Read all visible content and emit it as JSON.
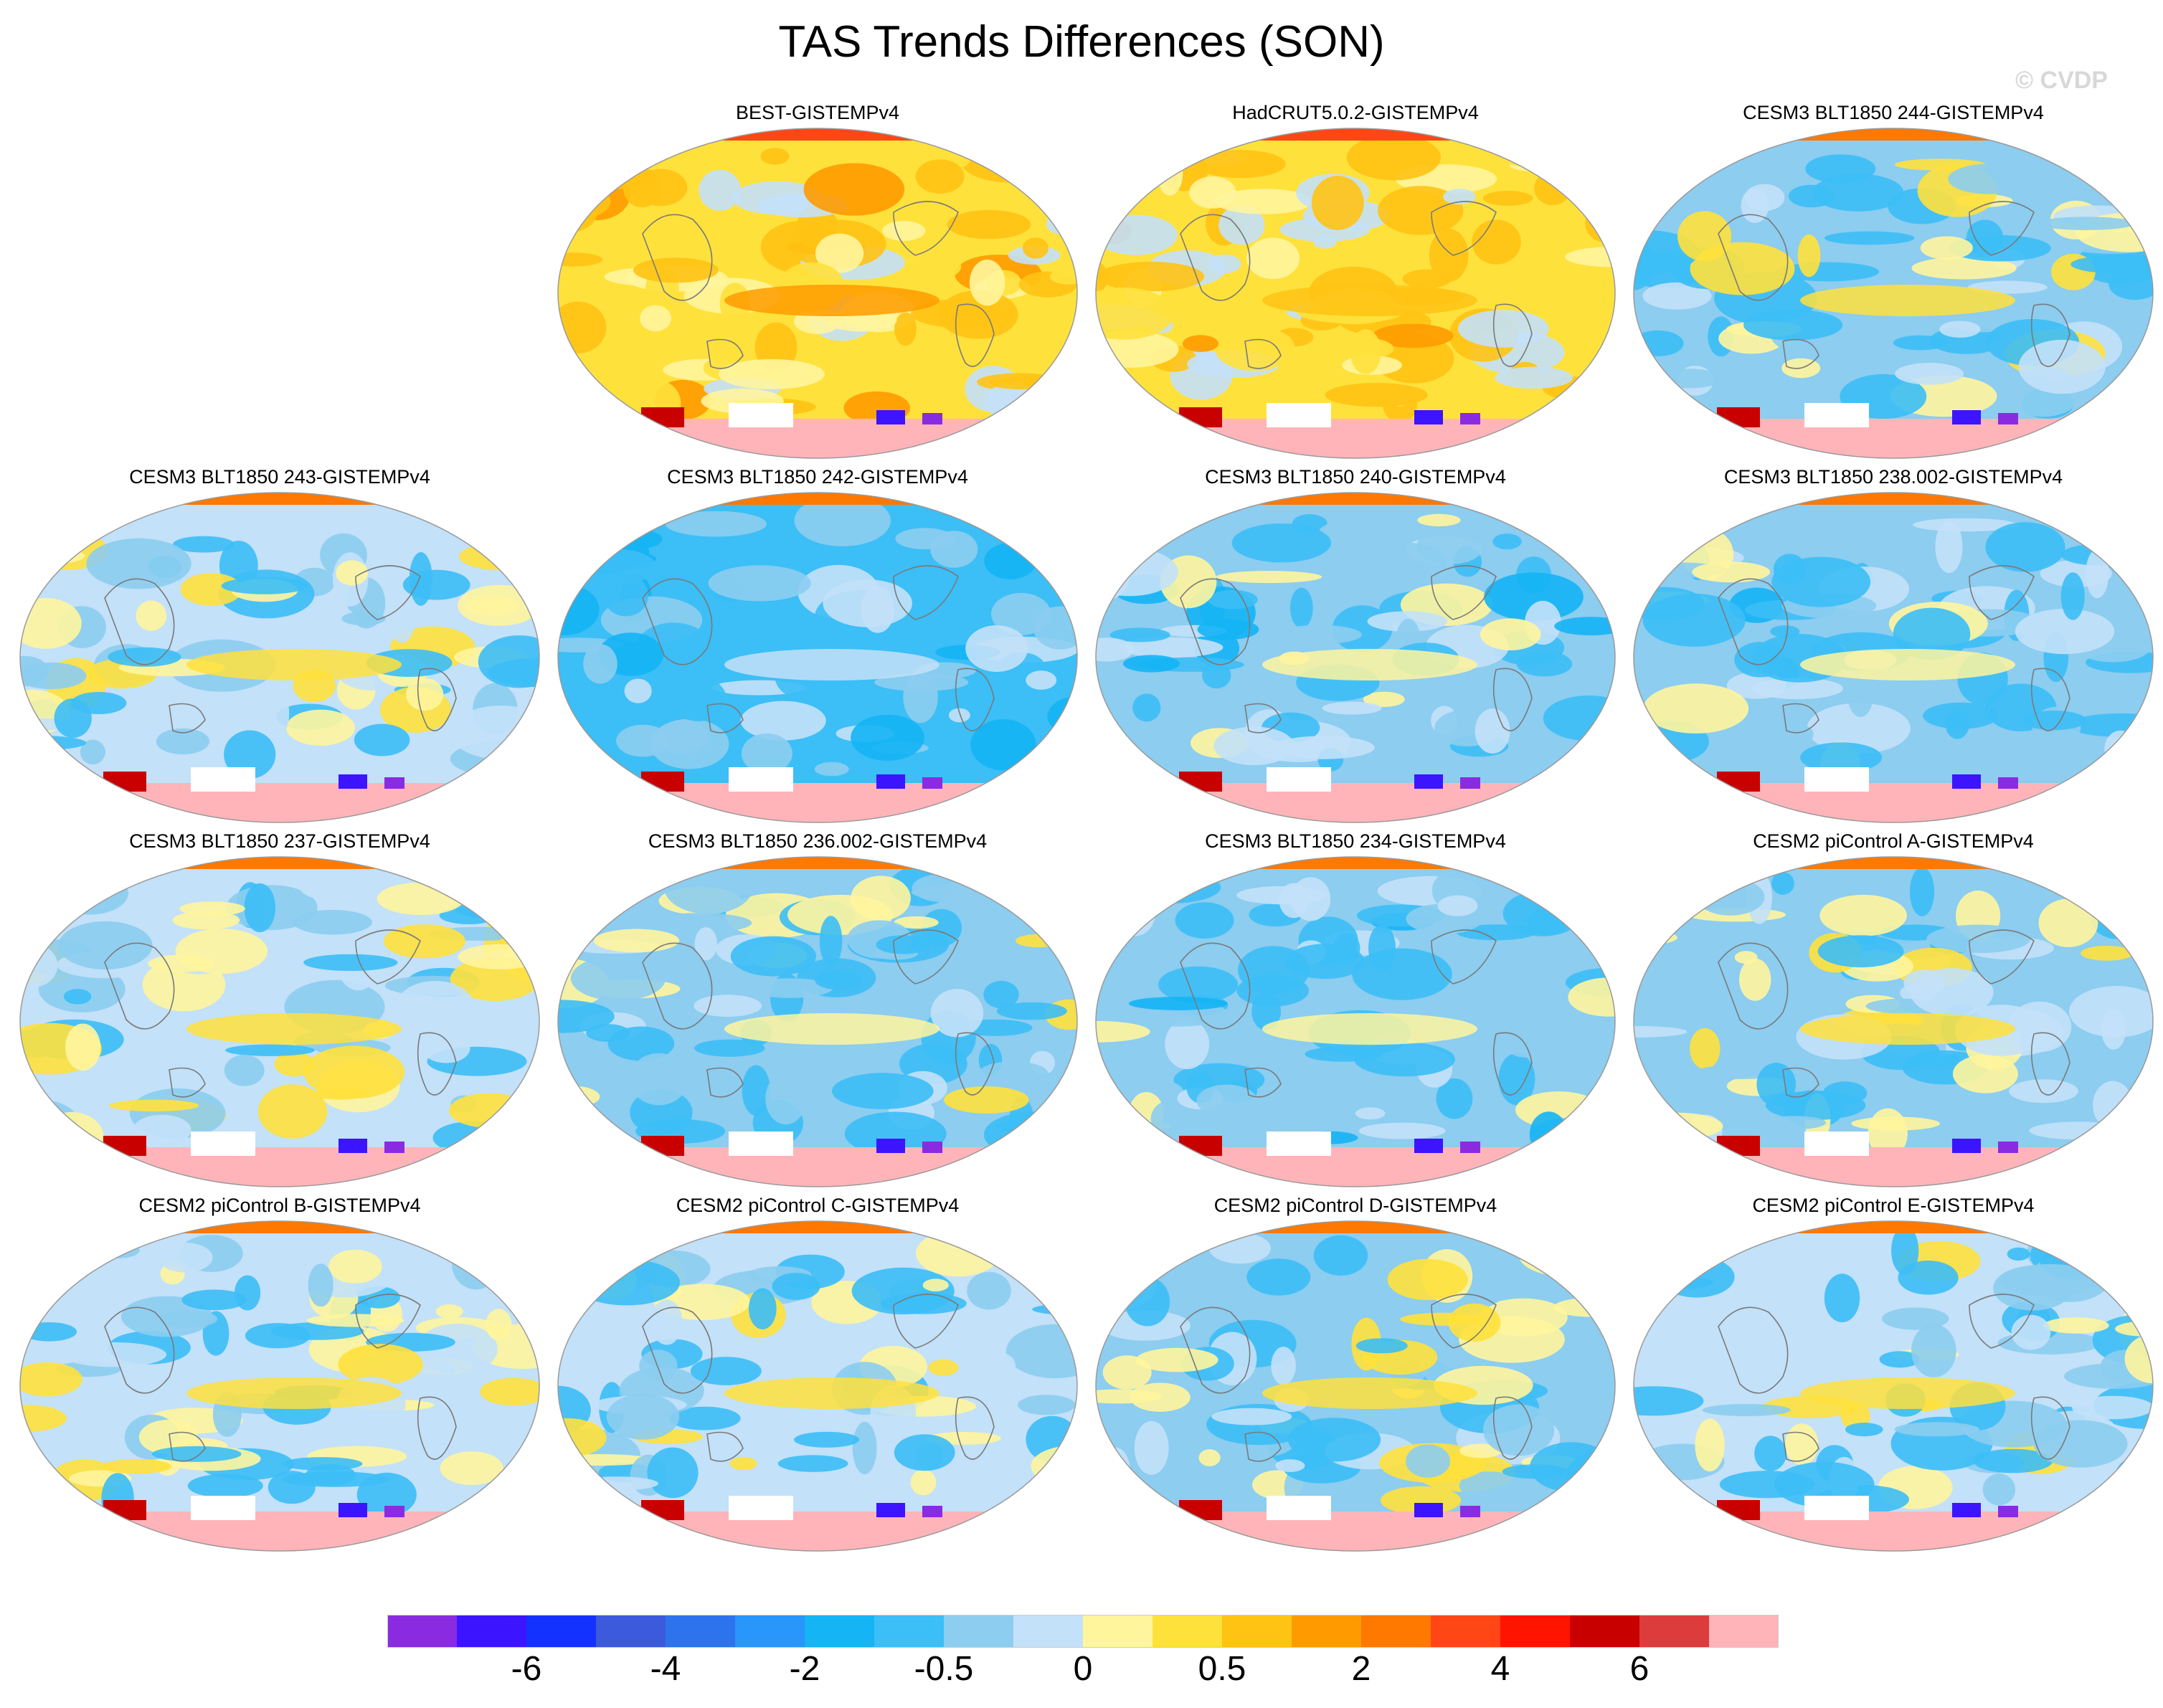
{
  "title": "TAS Trends Differences (SON)",
  "watermark": "© CVDP",
  "chart_data": {
    "type": "heatmap",
    "title": "TAS Trends Differences (SON)",
    "map_projection": "global equal-area (ellipse)",
    "panels": [
      {
        "title": "BEST-GISTEMPv4",
        "base": 0.9
      },
      {
        "title": "HadCRUT5.0.2-GISTEMPv4",
        "base": 0.8
      },
      {
        "title": "CESM3 BLT1850 244-GISTEMPv4",
        "base": -0.6
      },
      {
        "title": "CESM3 BLT1850 243-GISTEMPv4",
        "base": -0.5
      },
      {
        "title": "CESM3 BLT1850 242-GISTEMPv4",
        "base": -1.4
      },
      {
        "title": "CESM3 BLT1850 240-GISTEMPv4",
        "base": -0.9
      },
      {
        "title": "CESM3 BLT1850 238.002-GISTEMPv4",
        "base": -0.9
      },
      {
        "title": "CESM3 BLT1850 237-GISTEMPv4",
        "base": -0.4
      },
      {
        "title": "CESM3 BLT1850 236.002-GISTEMPv4",
        "base": -0.7
      },
      {
        "title": "CESM3 BLT1850 234-GISTEMPv4",
        "base": -1.0
      },
      {
        "title": "CESM2 piControl A-GISTEMPv4",
        "base": -0.6
      },
      {
        "title": "CESM2 piControl B-GISTEMPv4",
        "base": -0.4
      },
      {
        "title": "CESM2 piControl C-GISTEMPv4",
        "base": -0.5
      },
      {
        "title": "CESM2 piControl D-GISTEMPv4",
        "base": -0.6
      },
      {
        "title": "CESM2 piControl E-GISTEMPv4",
        "base": -0.5
      }
    ],
    "colorbar": {
      "tick_labels": [
        "-6",
        "-4",
        "-2",
        "-0.5",
        "0",
        "0.5",
        "2",
        "4",
        "6"
      ],
      "tick_boundary_index": [
        2,
        4,
        6,
        8,
        10,
        12,
        14,
        16,
        18
      ],
      "colors": [
        "#8a2be2",
        "#3c14ff",
        "#1432ff",
        "#3c5adc",
        "#2d73ee",
        "#2896fa",
        "#14b4f5",
        "#3cbef6",
        "#8ccdf0",
        "#c3e1f8",
        "#fff59d",
        "#ffe13c",
        "#ffc314",
        "#ff9b00",
        "#ff7800",
        "#ff4614",
        "#ff1400",
        "#c80000",
        "#dc3c3c",
        "#ffb4b9"
      ]
    }
  }
}
